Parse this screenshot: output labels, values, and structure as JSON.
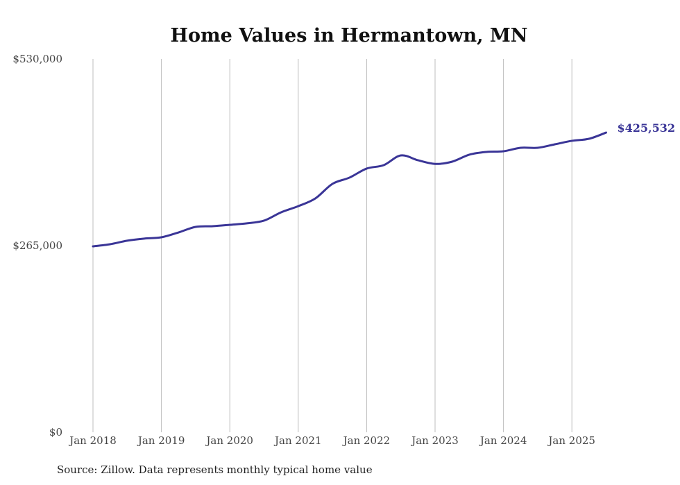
{
  "chart_data": {
    "type": "line",
    "title": "Home Values in Hermantown, MN",
    "xlabel": "",
    "ylabel": "",
    "ylim": [
      0,
      530000
    ],
    "y_ticks": [
      0,
      265000,
      530000
    ],
    "y_tick_labels": [
      "$0",
      "$265,000",
      "$530,000"
    ],
    "x_ticks": [
      "2018-01",
      "2019-01",
      "2020-01",
      "2021-01",
      "2022-01",
      "2023-01",
      "2024-01",
      "2025-01"
    ],
    "x_tick_labels": [
      "Jan 2018",
      "Jan 2019",
      "Jan 2020",
      "Jan 2021",
      "Jan 2022",
      "Jan 2023",
      "Jan 2024",
      "Jan 2025"
    ],
    "grid": "vertical",
    "line_color": "#3a3597",
    "series": [
      {
        "name": "Typical home value",
        "x": [
          "2018-01",
          "2018-04",
          "2018-07",
          "2018-10",
          "2019-01",
          "2019-04",
          "2019-07",
          "2019-10",
          "2020-01",
          "2020-04",
          "2020-07",
          "2020-10",
          "2021-01",
          "2021-04",
          "2021-07",
          "2021-10",
          "2022-01",
          "2022-04",
          "2022-07",
          "2022-10",
          "2023-01",
          "2023-04",
          "2023-07",
          "2023-10",
          "2024-01",
          "2024-04",
          "2024-07",
          "2024-10",
          "2025-01",
          "2025-04",
          "2025-07"
        ],
        "values": [
          264000,
          267000,
          272000,
          275000,
          276800,
          283700,
          291600,
          292600,
          294500,
          296600,
          300500,
          312300,
          321000,
          332000,
          352700,
          361600,
          374400,
          379300,
          393100,
          386200,
          381000,
          384200,
          394100,
          398000,
          399000,
          403900,
          403900,
          408800,
          413800,
          416700,
          425532
        ]
      }
    ],
    "end_label": "$425,532"
  },
  "source": "Source: Zillow. Data represents monthly typical home value"
}
